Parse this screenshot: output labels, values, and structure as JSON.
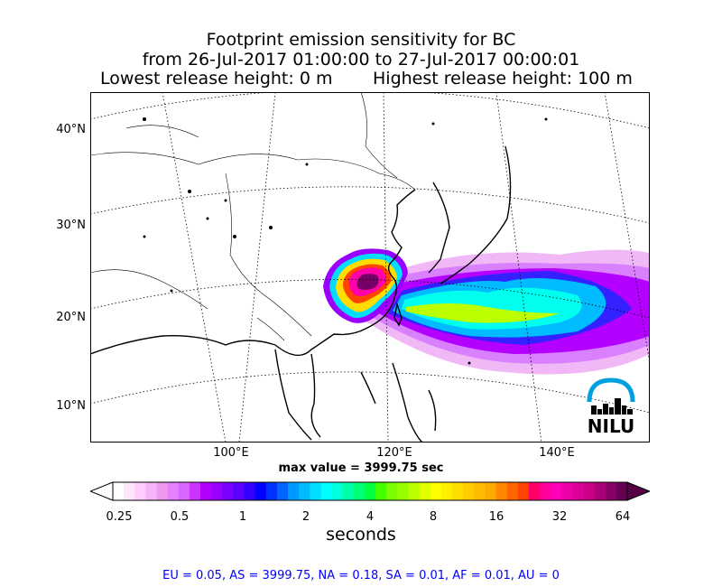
{
  "title": {
    "line1": "Footprint emission sensitivity for BC",
    "line2": "from 26-Jul-2017 01:00:00 to 27-Jul-2017 00:00:01",
    "lowest": "Lowest release height: 0 m",
    "highest": "Highest release height: 100 m"
  },
  "map": {
    "lat_labels": [
      "40°N",
      "30°N",
      "20°N",
      "10°N"
    ],
    "lon_labels": [
      "100°E",
      "120°E",
      "140°E"
    ],
    "logo_text": "NILU"
  },
  "max_value": "max value = 3999.75 sec",
  "colorbar": {
    "ticks": [
      "0.25",
      "0.5",
      "1",
      "2",
      "4",
      "8",
      "16",
      "32",
      "64"
    ],
    "units": "seconds",
    "colors": [
      "#ffffff",
      "#ffe6ff",
      "#ffccff",
      "#f7b3f7",
      "#ee99ee",
      "#e680ff",
      "#d966ff",
      "#cc33ff",
      "#b300ff",
      "#9900ff",
      "#7a00ff",
      "#5c00ff",
      "#3300ff",
      "#0000ff",
      "#0033ff",
      "#0066ff",
      "#0099ff",
      "#00bbff",
      "#00ddff",
      "#00ffff",
      "#00ffdd",
      "#00ffaa",
      "#00ff77",
      "#00ff44",
      "#44ff00",
      "#77ff00",
      "#99ff00",
      "#bbff00",
      "#ddff00",
      "#ffff00",
      "#ffee00",
      "#ffdd00",
      "#ffcc00",
      "#ffbb00",
      "#ffaa00",
      "#ff8800",
      "#ff6600",
      "#ff4400",
      "#ff0066",
      "#ff0099",
      "#ff00bb",
      "#ee00aa",
      "#dd0099",
      "#cc0088",
      "#aa0077",
      "#880066",
      "#660055"
    ]
  },
  "footer": "EU = 0.05,  AS = 3999.75,  NA = 0.18,  SA = 0.01,  AF = 0.01,  AU = 0"
}
